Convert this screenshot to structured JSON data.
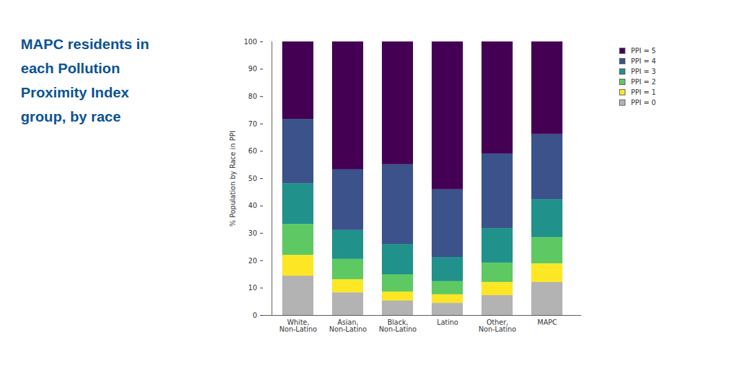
{
  "chart_data": {
    "type": "bar",
    "title": "MAPC residents in each Pollution Proximity Index group, by race",
    "ylabel": "% Population by Race in PPI",
    "categories": [
      "White, Non-Latino",
      "Asian, Non-Latino",
      "Black, Non-Latino",
      "Latino",
      "Other, Non-Latino",
      "MAPC"
    ],
    "series": [
      {
        "name": "PPI = 0",
        "color": "#b3b3b3",
        "values": [
          14.4,
          8.3,
          5.3,
          4.5,
          7.3,
          12.1
        ]
      },
      {
        "name": "PPI = 1",
        "color": "#fde725",
        "values": [
          7.6,
          4.8,
          3.3,
          3.1,
          4.8,
          6.8
        ]
      },
      {
        "name": "PPI = 2",
        "color": "#5ec962",
        "values": [
          11.3,
          7.4,
          6.3,
          4.8,
          7.1,
          9.6
        ]
      },
      {
        "name": "PPI = 3",
        "color": "#21918c",
        "values": [
          14.9,
          10.6,
          11.1,
          8.8,
          12.6,
          13.9
        ]
      },
      {
        "name": "PPI = 4",
        "color": "#3b528b",
        "values": [
          23.5,
          22.2,
          29.1,
          24.8,
          27.3,
          23.8
        ]
      },
      {
        "name": "PPI = 5",
        "color": "#440154",
        "values": [
          28.3,
          46.7,
          44.9,
          54.0,
          40.9,
          33.8
        ]
      }
    ],
    "stacked": true,
    "legend": "top-right",
    "ylim": [
      0,
      100
    ],
    "yticks": [
      0,
      10,
      20,
      30,
      40,
      50,
      60,
      70,
      80,
      90,
      100
    ],
    "grid": false
  }
}
